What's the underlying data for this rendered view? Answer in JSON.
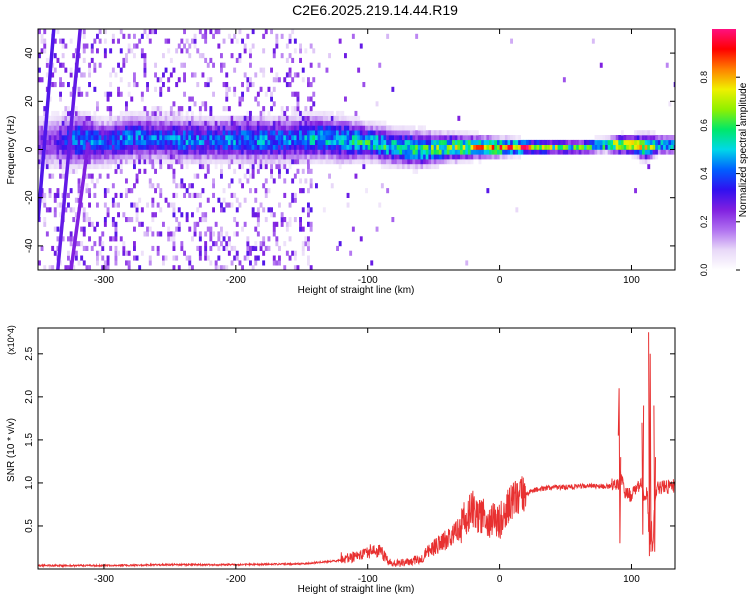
{
  "title": "C2E6.2025.219.14.44.R19",
  "chart_data": [
    {
      "type": "heatmap",
      "xlabel": "Height of straight line (km)",
      "ylabel": "Frequency (Hz)",
      "xlim": [
        -350,
        133
      ],
      "ylim": [
        -50,
        50
      ],
      "xticks": [
        -300,
        -200,
        -100,
        0,
        100
      ],
      "xtick_labels": [
        "-300",
        "-200",
        "-100",
        "0",
        "100"
      ],
      "yticks": [
        -40,
        -20,
        0,
        20,
        40
      ],
      "ytick_labels": [
        "-40",
        "-20",
        "0",
        "20",
        "40"
      ],
      "grid": false,
      "colorbar": {
        "label": "Normalized spectral amplitude",
        "range": [
          0.0,
          1.0
        ],
        "ticks": [
          0.0,
          0.2,
          0.4,
          0.6,
          0.8
        ],
        "tick_labels": [
          "0.0",
          "0.2",
          "0.4",
          "0.6",
          "0.8"
        ],
        "colormap": [
          "#ffffff",
          "#e8d8f8",
          "#b070f0",
          "#8020e0",
          "#3010f0",
          "#0060ff",
          "#00d8e8",
          "#00e868",
          "#90f000",
          "#f0f000",
          "#ff8000",
          "#ff0000",
          "#ff1080"
        ]
      },
      "ridge": [
        {
          "x": -340,
          "y": 2,
          "w": 6,
          "a": 0.25
        },
        {
          "x": -320,
          "y": 3,
          "w": 6,
          "a": 0.45
        },
        {
          "x": -300,
          "y": 2,
          "w": 5,
          "a": 0.4
        },
        {
          "x": -280,
          "y": 4,
          "w": 5,
          "a": 0.45
        },
        {
          "x": -260,
          "y": 4,
          "w": 5,
          "a": 0.4
        },
        {
          "x": -240,
          "y": 3,
          "w": 5,
          "a": 0.45
        },
        {
          "x": -220,
          "y": 3,
          "w": 5,
          "a": 0.4
        },
        {
          "x": -200,
          "y": 3,
          "w": 5,
          "a": 0.45
        },
        {
          "x": -180,
          "y": 3,
          "w": 5,
          "a": 0.45
        },
        {
          "x": -160,
          "y": 3,
          "w": 5,
          "a": 0.45
        },
        {
          "x": -140,
          "y": 4,
          "w": 5,
          "a": 0.5
        },
        {
          "x": -120,
          "y": 3,
          "w": 5,
          "a": 0.5
        },
        {
          "x": -100,
          "y": 2,
          "w": 4,
          "a": 0.55
        },
        {
          "x": -80,
          "y": 0,
          "w": 4,
          "a": 0.55
        },
        {
          "x": -60,
          "y": -1,
          "w": 4,
          "a": 0.6
        },
        {
          "x": -40,
          "y": 0,
          "w": 3,
          "a": 0.65
        },
        {
          "x": -20,
          "y": 0,
          "w": 2.5,
          "a": 0.75
        },
        {
          "x": 0,
          "y": 0,
          "w": 2,
          "a": 0.85
        },
        {
          "x": 20,
          "y": 0,
          "w": 1.5,
          "a": 0.95
        },
        {
          "x": 40,
          "y": 0,
          "w": 1.5,
          "a": 0.65
        },
        {
          "x": 60,
          "y": 0,
          "w": 1.5,
          "a": 0.6
        },
        {
          "x": 80,
          "y": 1,
          "w": 1.5,
          "a": 0.62
        },
        {
          "x": 90,
          "y": 1,
          "w": 2,
          "a": 0.8
        },
        {
          "x": 100,
          "y": 1,
          "w": 2,
          "a": 0.85
        },
        {
          "x": 110,
          "y": 0,
          "w": 3,
          "a": 0.7
        },
        {
          "x": 120,
          "y": 1,
          "w": 2,
          "a": 0.55
        },
        {
          "x": 133,
          "y": 1,
          "w": 2,
          "a": 0.5
        }
      ],
      "sloped_lines": [
        {
          "points": [
            [
              -350,
              -30
            ],
            [
              -338,
              50
            ]
          ],
          "a": 0.3
        },
        {
          "points": [
            [
              -335,
              -50
            ],
            [
              -318,
              50
            ]
          ],
          "a": 0.28
        },
        {
          "points": [
            [
              -325,
              -50
            ],
            [
              -315,
              -10
            ],
            [
              -312,
              3
            ]
          ],
          "a": 0.25
        }
      ]
    },
    {
      "type": "line",
      "xlabel": "Height of straight line (km)",
      "ylabel": "SNR (10 * v/v)",
      "yscale_label": "(x10^4)",
      "xlim": [
        -350,
        133
      ],
      "ylim": [
        0,
        2.8
      ],
      "xticks": [
        -300,
        -200,
        -100,
        0,
        100
      ],
      "xtick_labels": [
        "-300",
        "-200",
        "-100",
        "0",
        "100"
      ],
      "yticks": [
        0.5,
        1.0,
        1.5,
        2.0,
        2.5
      ],
      "ytick_labels": [
        "0.5",
        "1.0",
        "1.5",
        "2.0",
        "2.5"
      ],
      "grid": false,
      "color": "#e83030",
      "x": [
        -350,
        -300,
        -250,
        -200,
        -150,
        -120,
        -110,
        -100,
        -95,
        -90,
        -85,
        -80,
        -70,
        -60,
        -50,
        -45,
        -40,
        -35,
        -30,
        -25,
        -20,
        -15,
        -10,
        -5,
        0,
        5,
        10,
        15,
        20,
        30,
        40,
        50,
        60,
        70,
        80,
        85,
        88,
        90,
        92,
        95,
        100,
        105,
        108,
        110,
        112,
        113,
        114,
        115,
        116,
        118,
        120,
        125,
        133
      ],
      "values": [
        0.04,
        0.04,
        0.05,
        0.05,
        0.06,
        0.1,
        0.15,
        0.2,
        0.22,
        0.2,
        0.1,
        0.06,
        0.08,
        0.12,
        0.25,
        0.3,
        0.35,
        0.45,
        0.5,
        0.6,
        0.7,
        0.6,
        0.6,
        0.55,
        0.55,
        0.7,
        0.8,
        0.85,
        0.88,
        0.93,
        0.95,
        0.95,
        0.96,
        0.96,
        0.96,
        0.97,
        1.0,
        0.95,
        1.1,
        0.9,
        0.85,
        0.95,
        1.0,
        0.8,
        0.9,
        0.5,
        0.3,
        0.6,
        0.2,
        0.85,
        0.95,
        0.95,
        0.97
      ],
      "spikes": [
        {
          "x": 90,
          "values": [
            1.55,
            2.1,
            0.3,
            1.3
          ]
        },
        {
          "x": 108,
          "values": [
            1.7,
            0.4,
            1.9
          ]
        },
        {
          "x": 113,
          "values": [
            2.75,
            0.15,
            2.5,
            0.2
          ]
        },
        {
          "x": 117,
          "values": [
            1.9,
            0.2,
            1.3
          ]
        }
      ]
    }
  ]
}
